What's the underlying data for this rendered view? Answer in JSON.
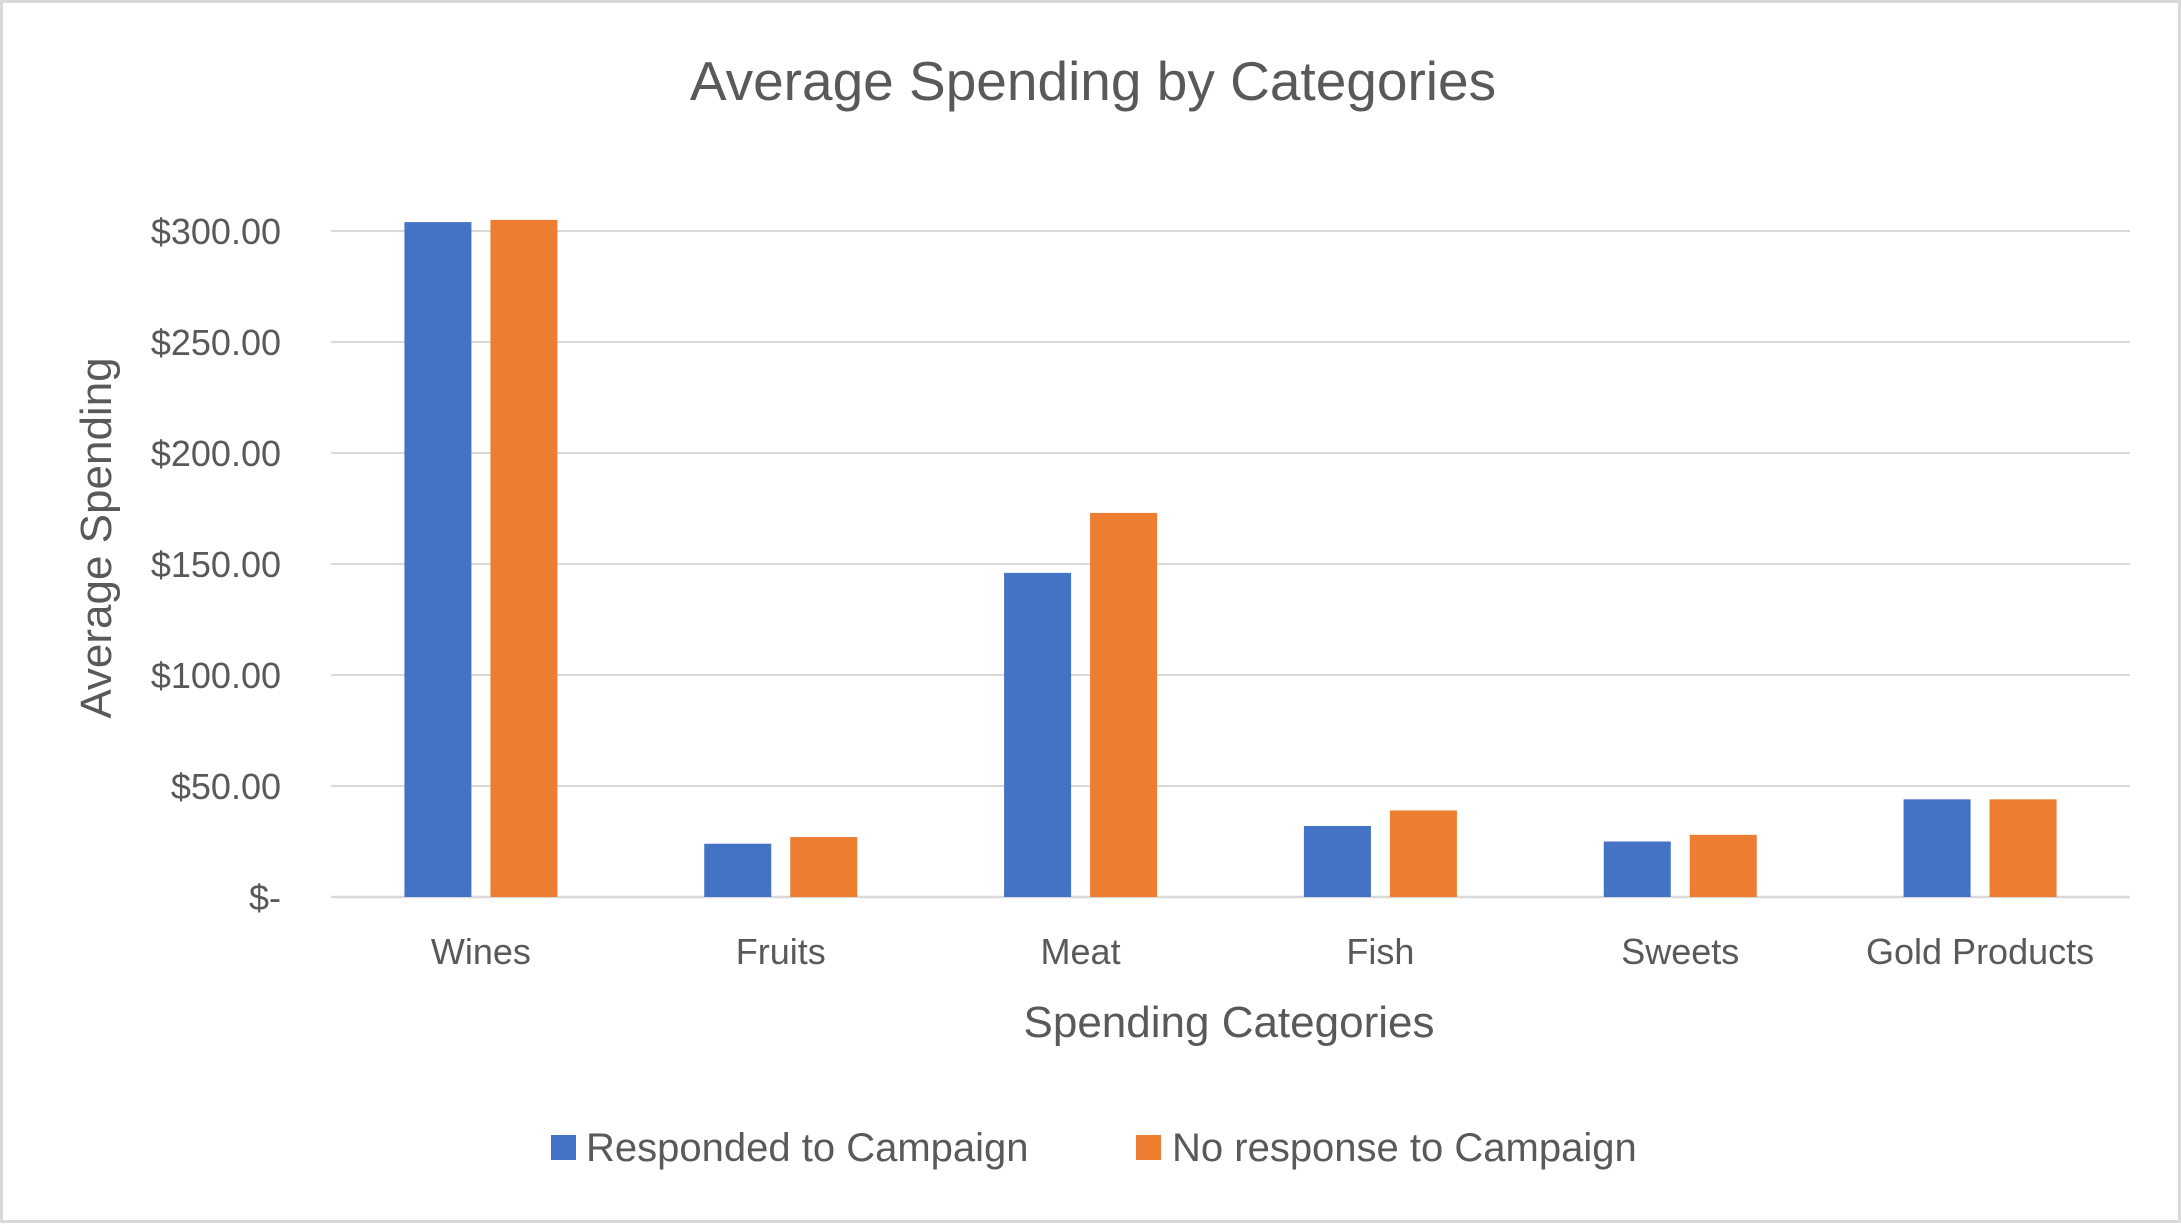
{
  "chart_data": {
    "type": "bar",
    "title": "Average Spending by Categories",
    "xlabel": "Spending Categories",
    "ylabel": "Average Spending",
    "categories": [
      "Wines",
      "Fruits",
      "Meat",
      "Fish",
      "Sweets",
      "Gold Products"
    ],
    "series": [
      {
        "name": "Responded to Campaign",
        "color": "#4472c4",
        "values": [
          304,
          24,
          146,
          32,
          25,
          44
        ]
      },
      {
        "name": "No response to Campaign",
        "color": "#ed7d31",
        "values": [
          305,
          27,
          173,
          39,
          28,
          44
        ]
      }
    ],
    "ylim": [
      0,
      300
    ],
    "y_ticks": [
      {
        "value": 0,
        "label": "$-"
      },
      {
        "value": 50,
        "label": "$50.00"
      },
      {
        "value": 100,
        "label": "$100.00"
      },
      {
        "value": 150,
        "label": "$150.00"
      },
      {
        "value": 200,
        "label": "$200.00"
      },
      {
        "value": 250,
        "label": "$250.00"
      },
      {
        "value": 300,
        "label": "$300.00"
      }
    ],
    "grid": true,
    "legend_position": "bottom"
  }
}
